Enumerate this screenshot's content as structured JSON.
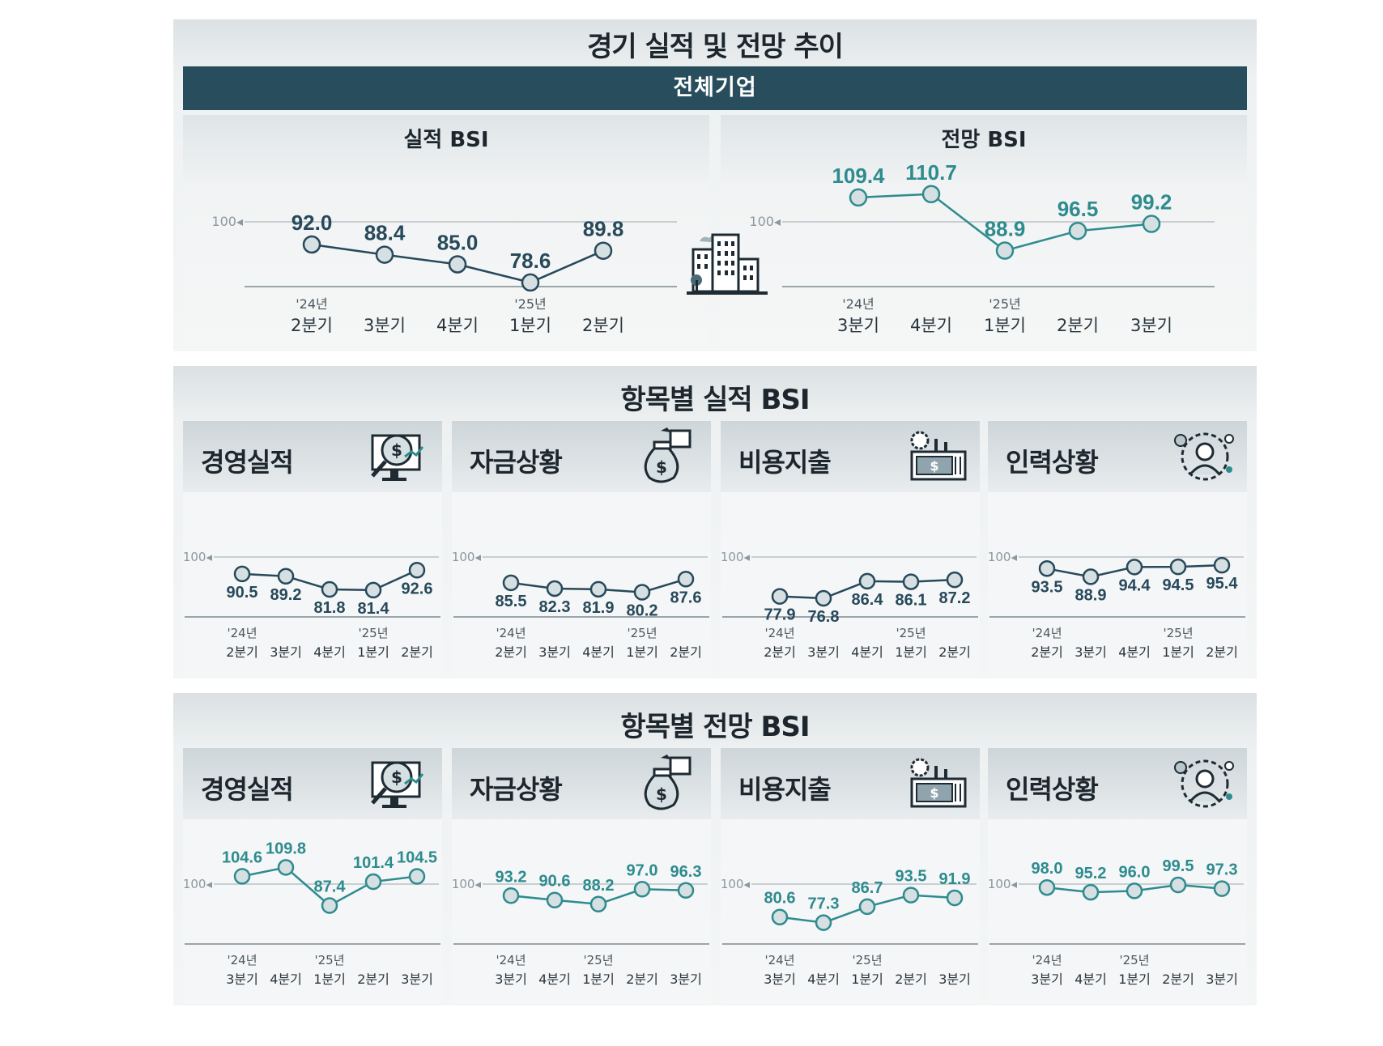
{
  "main_title": "경기 실적 및 전망 추이",
  "banner": "전체기업",
  "colors": {
    "actual": "#27495a",
    "forecast": "#2e8b8e",
    "banner": "#284e5d"
  },
  "top_charts": [
    {
      "title": "실적 BSI",
      "ref_label": "100",
      "chart_data": {
        "type": "line",
        "title": "실적 BSI",
        "categories": [
          "'24년 2분기",
          "3분기",
          "4분기",
          "'25년 1분기",
          "2분기"
        ],
        "values": [
          92.0,
          88.4,
          85.0,
          78.6,
          89.8
        ],
        "reference": 100
      },
      "year_labels": [
        "'24년",
        "",
        "",
        "'25년",
        ""
      ],
      "quarter_labels": [
        "2분기",
        "3분기",
        "4분기",
        "1분기",
        "2분기"
      ],
      "value_labels": [
        "92.0",
        "88.4",
        "85.0",
        "78.6",
        "89.8"
      ]
    },
    {
      "title": "전망 BSI",
      "ref_label": "100",
      "chart_data": {
        "type": "line",
        "title": "전망 BSI",
        "categories": [
          "'24년 3분기",
          "4분기",
          "'25년 1분기",
          "2분기",
          "3분기"
        ],
        "values": [
          109.4,
          110.7,
          88.9,
          96.5,
          99.2
        ],
        "reference": 100
      },
      "year_labels": [
        "'24년",
        "",
        "'25년",
        "",
        ""
      ],
      "quarter_labels": [
        "3분기",
        "4분기",
        "1분기",
        "2분기",
        "3분기"
      ],
      "value_labels": [
        "109.4",
        "110.7",
        "88.9",
        "96.5",
        "99.2"
      ]
    }
  ],
  "section_actual": {
    "title": "항목별 실적 BSI",
    "cards": [
      {
        "title": "경영실적",
        "icon": "monitor-magnifier-icon",
        "chart_data": {
          "type": "line",
          "values": [
            90.5,
            89.2,
            81.8,
            81.4,
            92.6
          ],
          "reference": 100
        },
        "value_labels": [
          "90.5",
          "89.2",
          "81.8",
          "81.4",
          "92.6"
        ],
        "year_labels": [
          "'24년",
          "",
          "",
          "'25년",
          ""
        ],
        "quarter_labels": [
          "2분기",
          "3분기",
          "4분기",
          "1분기",
          "2분기"
        ]
      },
      {
        "title": "자금상황",
        "icon": "money-bag-icon",
        "chart_data": {
          "type": "line",
          "values": [
            85.5,
            82.3,
            81.9,
            80.2,
            87.6
          ],
          "reference": 100
        },
        "value_labels": [
          "85.5",
          "82.3",
          "81.9",
          "80.2",
          "87.6"
        ],
        "year_labels": [
          "'24년",
          "",
          "",
          "'25년",
          ""
        ],
        "quarter_labels": [
          "2분기",
          "3분기",
          "4분기",
          "1분기",
          "2분기"
        ]
      },
      {
        "title": "비용지출",
        "icon": "cash-factory-icon",
        "chart_data": {
          "type": "line",
          "values": [
            77.9,
            76.8,
            86.4,
            86.1,
            87.2
          ],
          "reference": 100
        },
        "value_labels": [
          "77.9",
          "76.8",
          "86.4",
          "86.1",
          "87.2"
        ],
        "year_labels": [
          "'24년",
          "",
          "",
          "'25년",
          ""
        ],
        "quarter_labels": [
          "2분기",
          "3분기",
          "4분기",
          "1분기",
          "2분기"
        ]
      },
      {
        "title": "인력상황",
        "icon": "person-network-icon",
        "chart_data": {
          "type": "line",
          "values": [
            93.5,
            88.9,
            94.4,
            94.5,
            95.4
          ],
          "reference": 100
        },
        "value_labels": [
          "93.5",
          "88.9",
          "94.4",
          "94.5",
          "95.4"
        ],
        "year_labels": [
          "'24년",
          "",
          "",
          "'25년",
          ""
        ],
        "quarter_labels": [
          "2분기",
          "3분기",
          "4분기",
          "1분기",
          "2분기"
        ]
      }
    ]
  },
  "section_forecast": {
    "title": "항목별 전망 BSI",
    "cards": [
      {
        "title": "경영실적",
        "icon": "monitor-magnifier-icon",
        "chart_data": {
          "type": "line",
          "values": [
            104.6,
            109.8,
            87.4,
            101.4,
            104.5
          ],
          "reference": 100
        },
        "value_labels": [
          "104.6",
          "109.8",
          "87.4",
          "101.4",
          "104.5"
        ],
        "year_labels": [
          "'24년",
          "",
          "'25년",
          "",
          ""
        ],
        "quarter_labels": [
          "3분기",
          "4분기",
          "1분기",
          "2분기",
          "3분기"
        ]
      },
      {
        "title": "자금상황",
        "icon": "money-bag-icon",
        "chart_data": {
          "type": "line",
          "values": [
            93.2,
            90.6,
            88.2,
            97.0,
            96.3
          ],
          "reference": 100
        },
        "value_labels": [
          "93.2",
          "90.6",
          "88.2",
          "97.0",
          "96.3"
        ],
        "year_labels": [
          "'24년",
          "",
          "'25년",
          "",
          ""
        ],
        "quarter_labels": [
          "3분기",
          "4분기",
          "1분기",
          "2분기",
          "3분기"
        ]
      },
      {
        "title": "비용지출",
        "icon": "cash-factory-icon",
        "chart_data": {
          "type": "line",
          "values": [
            80.6,
            77.3,
            86.7,
            93.5,
            91.9
          ],
          "reference": 100
        },
        "value_labels": [
          "80.6",
          "77.3",
          "86.7",
          "93.5",
          "91.9"
        ],
        "year_labels": [
          "'24년",
          "",
          "'25년",
          "",
          ""
        ],
        "quarter_labels": [
          "3분기",
          "4분기",
          "1분기",
          "2분기",
          "3분기"
        ]
      },
      {
        "title": "인력상황",
        "icon": "person-network-icon",
        "chart_data": {
          "type": "line",
          "values": [
            98.0,
            95.2,
            96.0,
            99.5,
            97.3
          ],
          "reference": 100
        },
        "value_labels": [
          "98.0",
          "95.2",
          "96.0",
          "99.5",
          "97.3"
        ],
        "year_labels": [
          "'24년",
          "",
          "'25년",
          "",
          ""
        ],
        "quarter_labels": [
          "3분기",
          "4분기",
          "1분기",
          "2분기",
          "3분기"
        ]
      }
    ]
  }
}
